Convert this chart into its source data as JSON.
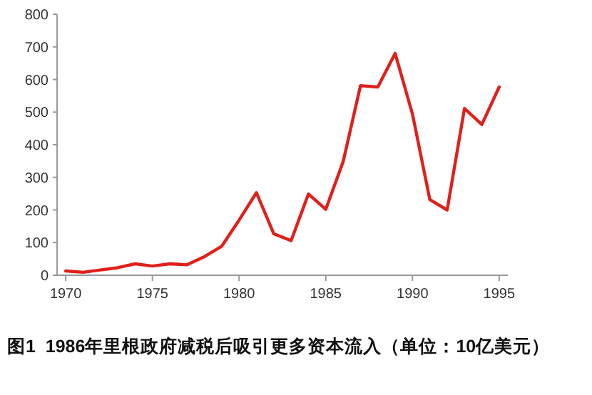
{
  "chart_data": {
    "type": "line",
    "title": "图1  1986年里根政府减税后吸引更多资本流入（单位：10亿美元）",
    "x": [
      1970,
      1971,
      1972,
      1973,
      1974,
      1975,
      1976,
      1977,
      1978,
      1979,
      1980,
      1981,
      1982,
      1983,
      1984,
      1985,
      1986,
      1987,
      1988,
      1989,
      1990,
      1991,
      1992,
      1993,
      1994,
      1995
    ],
    "series": [
      {
        "color": "#e0201b",
        "values": [
          13,
          9,
          16,
          23,
          35,
          28,
          35,
          32,
          57,
          89,
          169,
          253,
          127,
          106,
          249,
          202,
          348,
          581,
          577,
          680,
          494,
          232,
          200,
          511,
          462,
          577
        ]
      }
    ],
    "xlim": [
      1969.5,
      1995.5
    ],
    "xticks": [
      1970,
      1975,
      1980,
      1985,
      1990,
      1995
    ],
    "ylim": [
      0,
      800
    ],
    "yticks": [
      0,
      100,
      200,
      300,
      400,
      500,
      600,
      700,
      800
    ],
    "grid": false,
    "marker": "none",
    "line_style": "solid"
  }
}
